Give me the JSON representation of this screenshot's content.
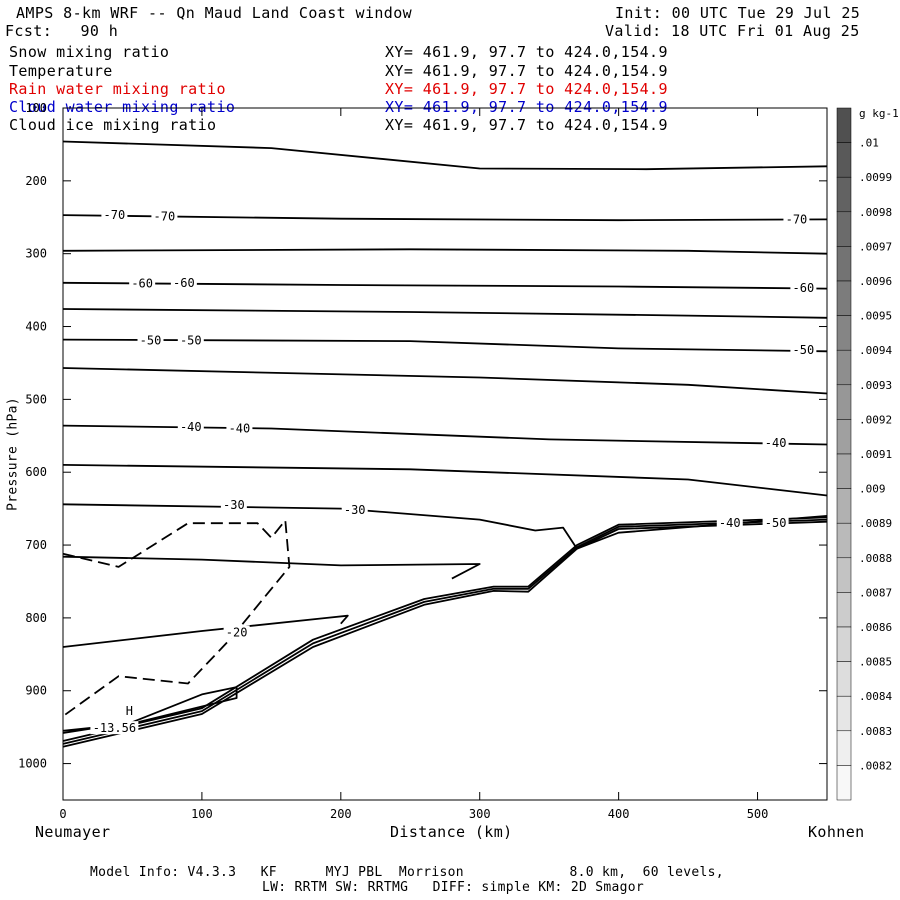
{
  "header": {
    "title": "AMPS 8-km WRF -- Qn Maud Land Coast window",
    "init": "Init: 00 UTC Tue 29 Jul 25",
    "fcst": "Fcst:   90 h",
    "valid": "Valid: 18 UTC Fri 01 Aug 25"
  },
  "fields": [
    {
      "name": "Snow mixing ratio",
      "xy": "XY= 461.9, 97.7 to 424.0,154.9",
      "color": "#000000"
    },
    {
      "name": "Temperature",
      "xy": "XY= 461.9, 97.7 to 424.0,154.9",
      "color": "#000000"
    },
    {
      "name": "Rain water mixing ratio",
      "xy": "XY= 461.9, 97.7 to 424.0,154.9",
      "color": "#e00000"
    },
    {
      "name": "Cloud water mixing ratio",
      "xy": "XY= 461.9, 97.7 to 424.0,154.9",
      "color": "#0000cc"
    },
    {
      "name": "Cloud ice mixing ratio",
      "xy": "XY= 461.9, 97.7 to 424.0,154.9",
      "color": "#000000"
    }
  ],
  "footer": {
    "line1": "Model Info: V4.3.3   KF      MYJ PBL  Morrison             8.0 km,  60 levels,",
    "line2": "LW: RRTM SW: RRTMG   DIFF: simple KM: 2D Smagor"
  },
  "chart_data": {
    "type": "line",
    "xlabel": "Distance (km)",
    "ylabel": "Pressure (hPa)",
    "x_left_label": "Neumayer",
    "x_right_label": "Kohnen",
    "xlim": [
      0,
      550
    ],
    "ylim": [
      1050,
      100
    ],
    "x_ticks": [
      0,
      100,
      200,
      300,
      400,
      500
    ],
    "y_ticks": [
      100,
      200,
      300,
      400,
      500,
      600,
      700,
      800,
      900,
      1000
    ],
    "colorbar": {
      "unit": "g kg-1",
      "labels": [
        ".01",
        ".0099",
        ".0098",
        ".0097",
        ".0096",
        ".0095",
        ".0094",
        ".0093",
        ".0092",
        ".0091",
        ".009",
        ".0089",
        ".0088",
        ".0087",
        ".0086",
        ".0085",
        ".0084",
        ".0083",
        ".0082"
      ],
      "top_color": "#505050",
      "bottom_color": "#f8f8f8"
    },
    "max_marker": {
      "symbol": "H",
      "value": "-13.56",
      "x": 37,
      "y": 950
    },
    "series": [
      {
        "style": "solid",
        "points": [
          [
            0,
            146
          ],
          [
            150,
            155
          ],
          [
            300,
            183
          ],
          [
            420,
            184
          ],
          [
            550,
            180
          ]
        ]
      },
      {
        "style": "solid",
        "points": [
          [
            0,
            247
          ],
          [
            200,
            252
          ],
          [
            400,
            254
          ],
          [
            550,
            253
          ]
        ]
      },
      {
        "style": "solid",
        "points": [
          [
            0,
            296
          ],
          [
            250,
            294
          ],
          [
            450,
            296
          ],
          [
            550,
            300
          ]
        ]
      },
      {
        "style": "solid",
        "points": [
          [
            0,
            340
          ],
          [
            200,
            343
          ],
          [
            400,
            345
          ],
          [
            550,
            348
          ]
        ]
      },
      {
        "style": "solid",
        "points": [
          [
            0,
            376
          ],
          [
            250,
            380
          ],
          [
            450,
            385
          ],
          [
            550,
            388
          ]
        ]
      },
      {
        "style": "solid",
        "points": [
          [
            0,
            418
          ],
          [
            250,
            420
          ],
          [
            400,
            430
          ],
          [
            550,
            434
          ]
        ]
      },
      {
        "style": "solid",
        "points": [
          [
            0,
            457
          ],
          [
            300,
            470
          ],
          [
            450,
            480
          ],
          [
            550,
            492
          ]
        ]
      },
      {
        "style": "solid",
        "points": [
          [
            0,
            536
          ],
          [
            150,
            540
          ],
          [
            350,
            555
          ],
          [
            550,
            562
          ]
        ]
      },
      {
        "style": "solid",
        "points": [
          [
            0,
            590
          ],
          [
            250,
            596
          ],
          [
            450,
            610
          ],
          [
            550,
            632
          ]
        ]
      },
      {
        "style": "solid",
        "points": [
          [
            0,
            644
          ],
          [
            200,
            650
          ],
          [
            300,
            665
          ],
          [
            340,
            680
          ],
          [
            360,
            676
          ],
          [
            370,
            705
          ],
          [
            400,
            683
          ],
          [
            550,
            660
          ]
        ]
      },
      {
        "style": "solid",
        "points": [
          [
            0,
            716
          ],
          [
            100,
            720
          ],
          [
            200,
            728
          ],
          [
            300,
            726
          ],
          [
            280,
            746
          ]
        ]
      },
      {
        "style": "solid",
        "points": [
          [
            0,
            840
          ],
          [
            100,
            818
          ],
          [
            190,
            800
          ],
          [
            205,
            797
          ],
          [
            200,
            808
          ]
        ]
      },
      {
        "style": "solid",
        "points": [
          [
            0,
            958
          ],
          [
            50,
            943
          ],
          [
            100,
            905
          ],
          [
            125,
            895
          ],
          [
            125,
            910
          ],
          [
            50,
            945
          ],
          [
            0,
            955
          ]
        ]
      },
      {
        "style": "dashed",
        "points": [
          [
            0,
            712
          ],
          [
            40,
            730
          ],
          [
            90,
            670
          ],
          [
            140,
            670
          ],
          [
            150,
            690
          ],
          [
            160,
            666
          ],
          [
            163,
            730
          ],
          [
            150,
            760
          ],
          [
            120,
            830
          ],
          [
            90,
            890
          ],
          [
            40,
            880
          ],
          [
            0,
            935
          ]
        ]
      },
      {
        "style": "solid",
        "points": [
          [
            0,
            977
          ],
          [
            100,
            932
          ],
          [
            180,
            840
          ],
          [
            260,
            782
          ],
          [
            310,
            763
          ],
          [
            335,
            764
          ],
          [
            370,
            705
          ],
          [
            400,
            678
          ],
          [
            550,
            668
          ]
        ]
      },
      {
        "style": "solid",
        "points": [
          [
            0,
            973
          ],
          [
            100,
            928
          ],
          [
            180,
            835
          ],
          [
            260,
            778
          ],
          [
            310,
            760
          ],
          [
            335,
            760
          ],
          [
            370,
            703
          ],
          [
            400,
            675
          ],
          [
            550,
            665
          ]
        ]
      },
      {
        "style": "solid",
        "points": [
          [
            0,
            969
          ],
          [
            100,
            924
          ],
          [
            180,
            830
          ],
          [
            260,
            774
          ],
          [
            310,
            757
          ],
          [
            335,
            757
          ],
          [
            370,
            700
          ],
          [
            400,
            672
          ],
          [
            550,
            662
          ]
        ]
      }
    ],
    "contour_labels": [
      {
        "text": "-70",
        "x": 37,
        "y": 247
      },
      {
        "text": "-70",
        "x": 73,
        "y": 249
      },
      {
        "text": "-70",
        "x": 528,
        "y": 253
      },
      {
        "text": "-60",
        "x": 57,
        "y": 341
      },
      {
        "text": "-60",
        "x": 87,
        "y": 340
      },
      {
        "text": "-60",
        "x": 533,
        "y": 347
      },
      {
        "text": "-50",
        "x": 63,
        "y": 419
      },
      {
        "text": "-50",
        "x": 92,
        "y": 419
      },
      {
        "text": "-50",
        "x": 533,
        "y": 432
      },
      {
        "text": "-40",
        "x": 92,
        "y": 538
      },
      {
        "text": "-40",
        "x": 127,
        "y": 540
      },
      {
        "text": "-40",
        "x": 513,
        "y": 560
      },
      {
        "text": "-30",
        "x": 123,
        "y": 645
      },
      {
        "text": "-30",
        "x": 210,
        "y": 652
      },
      {
        "text": "-40",
        "x": 480,
        "y": 670
      },
      {
        "text": "-50",
        "x": 513,
        "y": 670
      },
      {
        "text": "-20",
        "x": 125,
        "y": 820
      }
    ]
  }
}
